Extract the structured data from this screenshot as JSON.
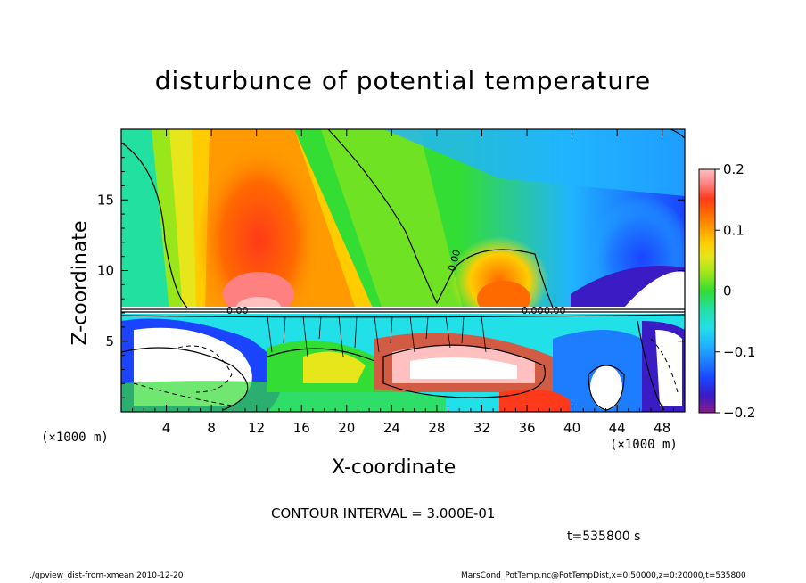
{
  "chart_data": {
    "type": "heatmap",
    "title": "disturbunce of potential temperature",
    "xlabel": "X-coordinate",
    "ylabel": "Z-coordinate",
    "x_unit_label": "(×1000 m)",
    "x_ticks": [
      "4",
      "8",
      "12",
      "16",
      "20",
      "24",
      "28",
      "32",
      "36",
      "40",
      "44",
      "48"
    ],
    "y_ticks": [
      "5",
      "10",
      "15"
    ],
    "xlim": [
      0,
      50
    ],
    "ylim": [
      0,
      20
    ],
    "colorbar": {
      "ticks": [
        "0.2",
        "0.1",
        "0",
        "−0.1",
        "−0.2"
      ],
      "range": [
        -0.2,
        0.2
      ],
      "colors": [
        "#8b1c8b",
        "#3a1bc4",
        "#1a44ff",
        "#1d7dff",
        "#20b4ff",
        "#22e0e8",
        "#22e0a0",
        "#33dd33",
        "#99e61a",
        "#e6e61a",
        "#ffcc00",
        "#ff9a00",
        "#ff6a00",
        "#ff3a1a",
        "#ff8080",
        "#ffc0c0"
      ]
    },
    "contour_labels": [
      "0.00",
      "0.00",
      "0.00",
      "0.00"
    ],
    "contour_interval_text": "CONTOUR INTERVAL = 3.000E-01"
  },
  "annotations": {
    "time": "t=535800 s",
    "footer_left": "./gpview_dist-from-xmean  2010-12-20",
    "footer_right": "MarsCond_PotTemp.nc@PotTempDist,x=0:50000,z=0:20000,t=535800"
  }
}
